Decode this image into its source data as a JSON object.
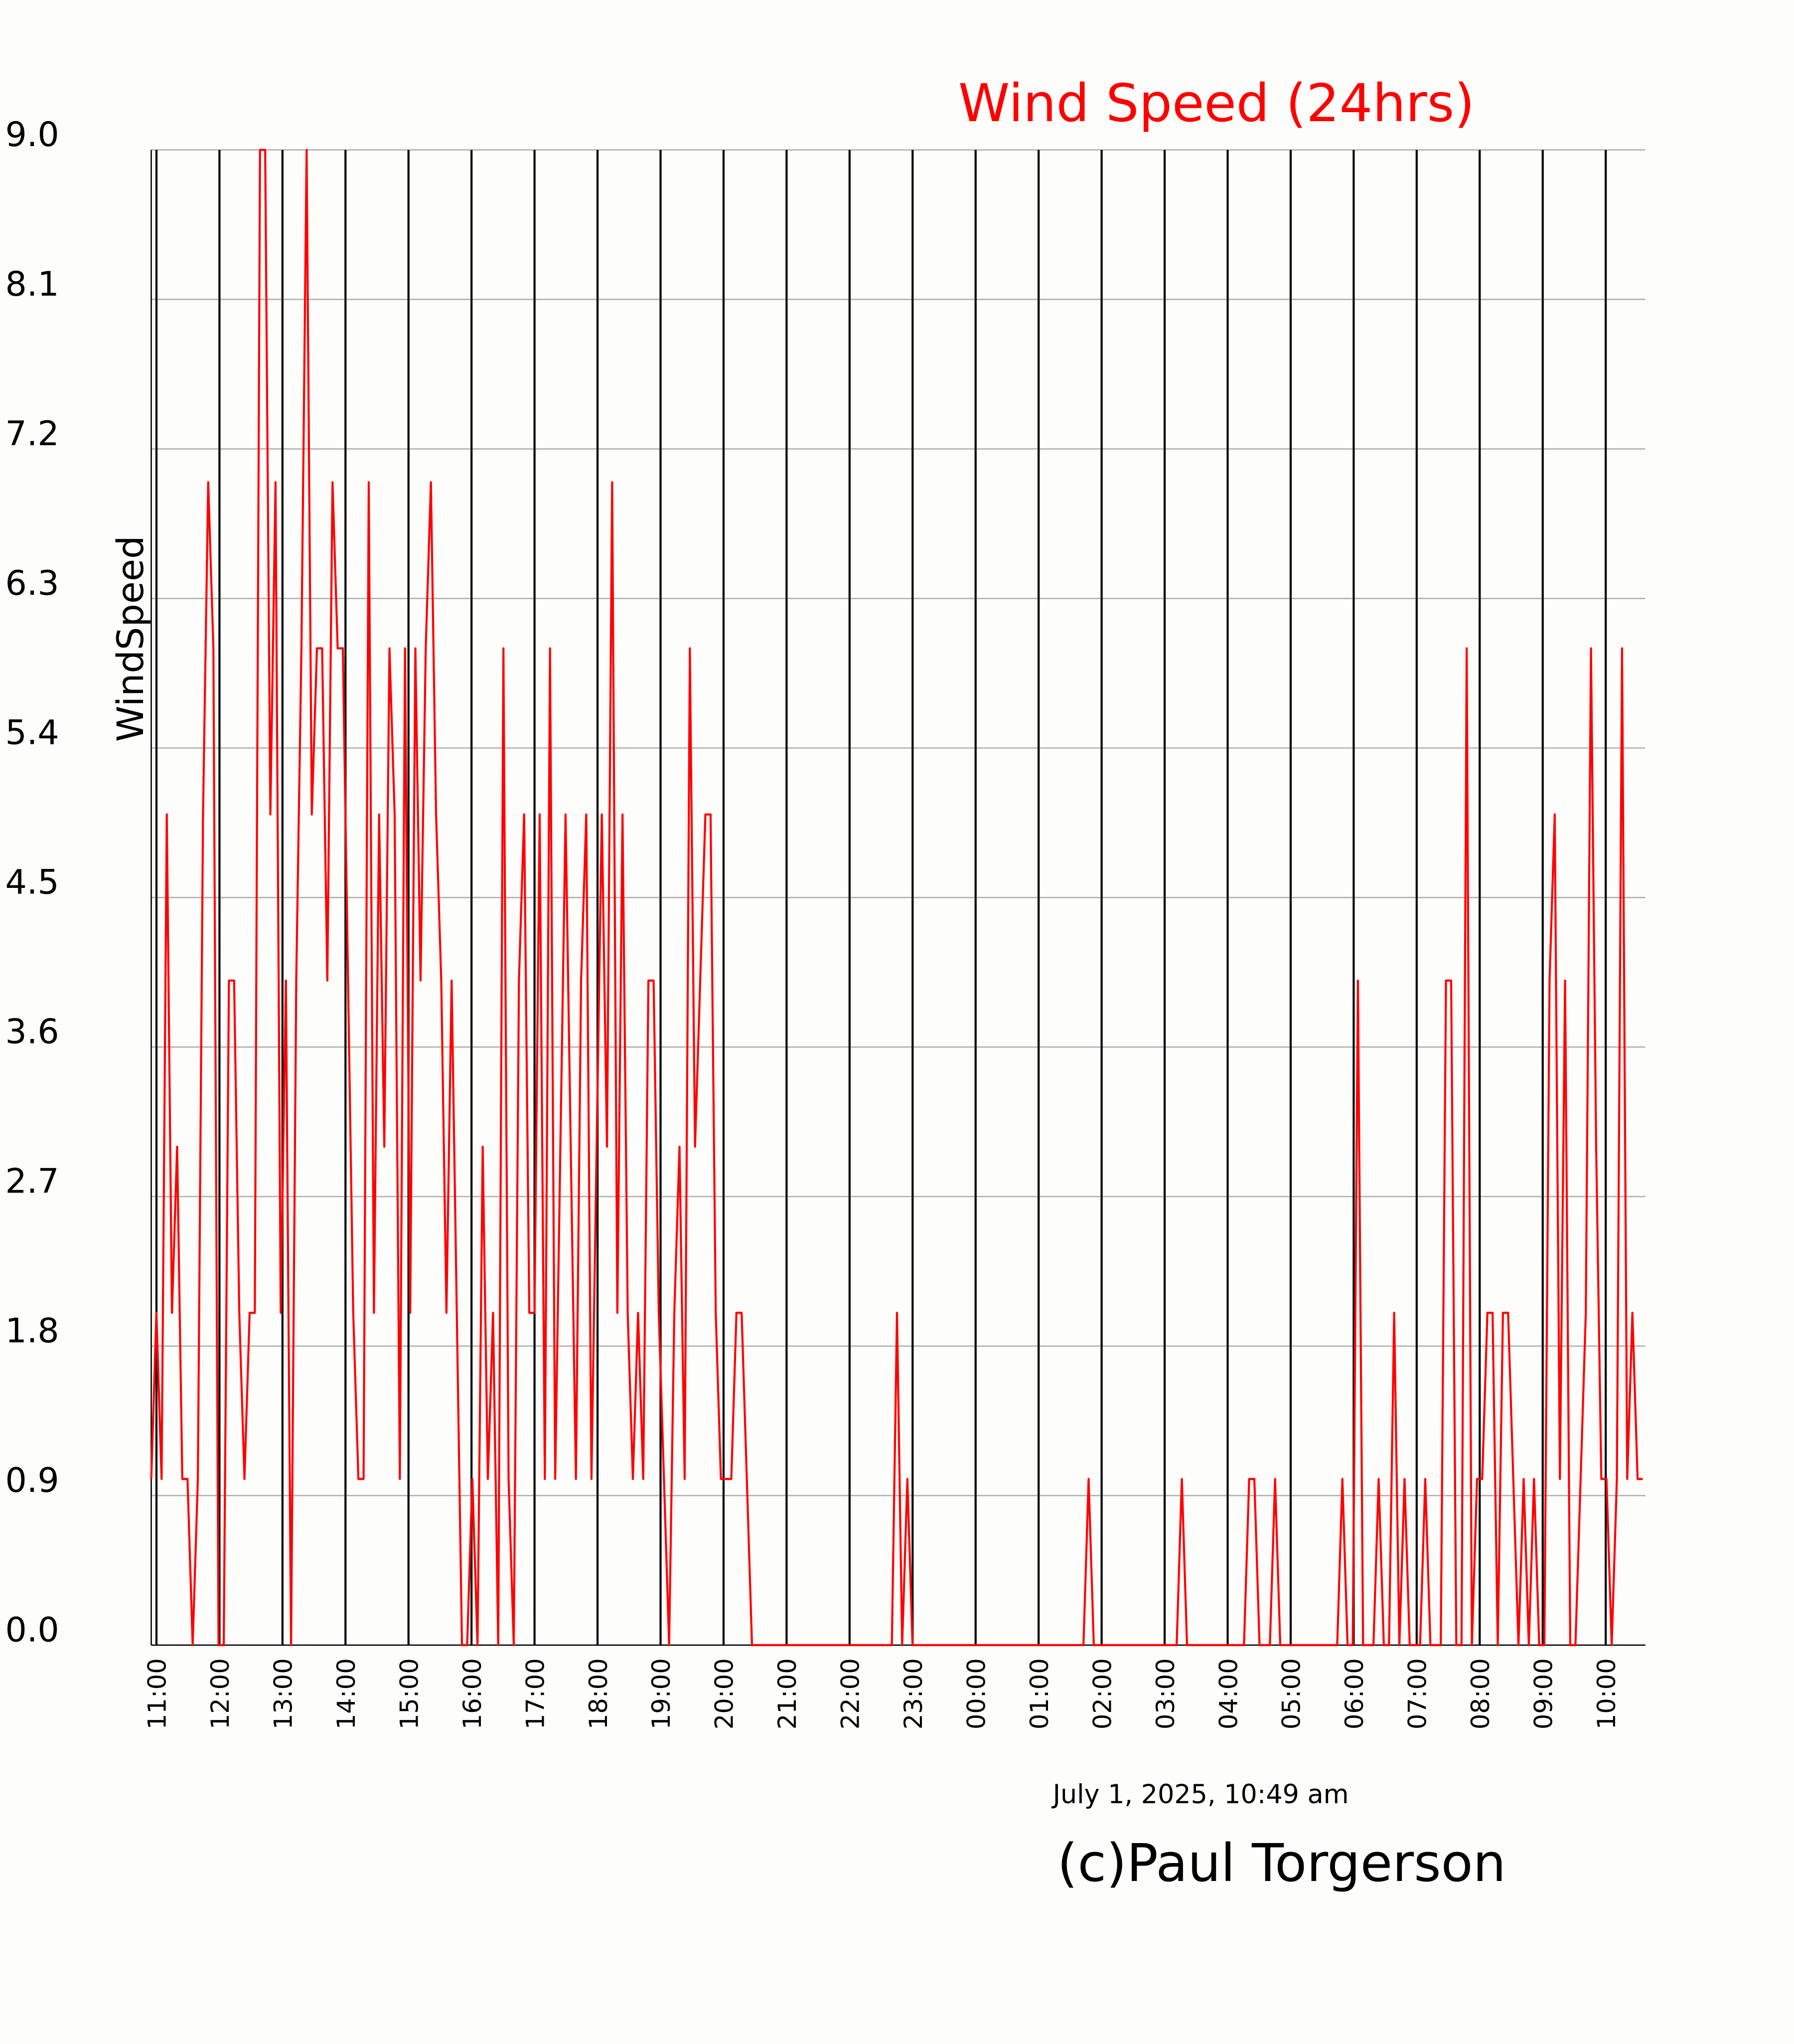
{
  "chart_data": {
    "type": "line",
    "title": "Wind Speed (24hrs)",
    "y_label": "WindSpeed",
    "timestamp": "July 1, 2025, 10:49 am",
    "credit": "(c)Paul Torgerson",
    "color": "#ff0000",
    "grid": true,
    "ylim": [
      0,
      9
    ],
    "yticks": [
      {
        "value": 0,
        "label": "0.0"
      },
      0.9,
      1.8,
      2.7,
      3.6,
      4.5,
      5.4,
      6.3,
      7.2,
      8.1,
      {
        "value": 9,
        "label": "9.0"
      }
    ],
    "xticks": [
      "11:00",
      "12:00",
      "13:00",
      "14:00",
      "15:00",
      "16:00",
      "17:00",
      "18:00",
      "19:00",
      "20:00",
      "21:00",
      "22:00",
      "23:00",
      "00:00",
      "01:00",
      "02:00",
      "03:00",
      "04:00",
      "05:00",
      "06:00",
      "07:00",
      "08:00",
      "09:00",
      "10:00"
    ],
    "values": [
      1,
      2,
      1,
      5,
      2,
      3,
      1,
      1,
      0,
      1,
      5,
      7,
      6,
      0,
      0,
      4,
      4,
      2,
      1,
      2,
      2,
      9,
      9,
      5,
      7,
      2,
      4,
      0,
      4,
      6,
      9,
      5,
      6,
      6,
      4,
      7,
      6,
      6,
      4,
      2,
      1,
      1,
      7,
      2,
      5,
      3,
      6,
      5,
      1,
      6,
      2,
      6,
      4,
      6,
      7,
      5,
      4,
      2,
      4,
      2,
      0,
      0,
      1,
      0,
      3,
      1,
      2,
      0,
      6,
      1,
      0,
      4,
      5,
      2,
      2,
      5,
      1,
      6,
      1,
      3,
      5,
      3,
      1,
      4,
      5,
      1,
      3,
      5,
      3,
      7,
      2,
      5,
      2,
      1,
      2,
      1,
      4,
      4,
      2,
      1,
      0,
      2,
      3,
      1,
      6,
      3,
      4,
      5,
      5,
      2,
      1,
      1,
      1,
      2,
      2,
      1,
      0,
      0,
      0,
      0,
      0,
      0,
      0,
      0,
      0,
      0,
      0,
      0,
      0,
      0,
      0,
      0,
      0,
      0,
      0,
      0,
      0,
      0,
      0,
      0,
      0,
      0,
      0,
      0,
      2,
      0,
      1,
      0,
      0,
      0,
      0,
      0,
      0,
      0,
      0,
      0,
      0,
      0,
      0,
      0,
      0,
      0,
      0,
      0,
      0,
      0,
      0,
      0,
      0,
      0,
      0,
      0,
      0,
      0,
      0,
      0,
      0,
      0,
      0,
      0,
      0,
      1,
      0,
      0,
      0,
      0,
      0,
      0,
      0,
      0,
      0,
      0,
      0,
      0,
      0,
      0,
      0,
      0,
      0,
      1,
      0,
      0,
      0,
      0,
      0,
      0,
      0,
      0,
      0,
      0,
      0,
      0,
      1,
      1,
      0,
      0,
      0,
      1,
      0,
      0,
      0,
      0,
      0,
      0,
      0,
      0,
      0,
      0,
      0,
      0,
      1,
      0,
      0,
      4,
      0,
      0,
      0,
      1,
      0,
      0,
      2,
      0,
      1,
      0,
      0,
      0,
      1,
      0,
      0,
      0,
      4,
      4,
      0,
      0,
      6,
      0,
      1,
      1,
      2,
      2,
      0,
      2,
      2,
      1,
      0,
      1,
      0,
      1,
      0,
      0,
      4,
      5,
      1,
      4,
      0,
      0,
      1,
      2,
      6,
      3,
      1,
      1,
      0,
      1,
      6,
      1,
      2,
      1,
      1
    ]
  }
}
